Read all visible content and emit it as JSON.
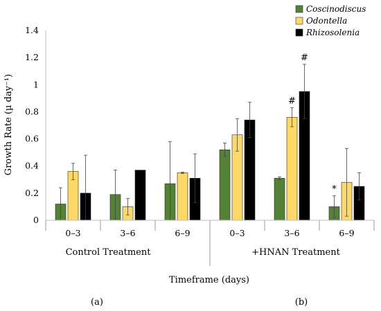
{
  "chart_data": {
    "type": "bar",
    "ylabel": "Growth Rate (µ day⁻¹)",
    "xlabel": "Timeframe (days)",
    "ylim": [
      0,
      1.4
    ],
    "yticks": [
      "0",
      "0.2",
      "0.4",
      "0.6",
      "0.8",
      "1",
      "1.2",
      "1.4"
    ],
    "grid": false,
    "legend_position": "top-right",
    "groups": [
      {
        "label": "Control Treatment",
        "categories": [
          "0–3",
          "3–6",
          "6–9"
        ]
      },
      {
        "label": "+HNAN Treatment",
        "categories": [
          "0–3",
          "3–6",
          "6–9"
        ]
      }
    ],
    "series": [
      {
        "name": "Coscinodiscus",
        "color": "#548235",
        "values": [
          0.12,
          0.19,
          0.27,
          0.52,
          0.31,
          0.1
        ],
        "errors": [
          0.12,
          0.18,
          0.31,
          0.05,
          0.01,
          0.08
        ]
      },
      {
        "name": "Odontella",
        "color": "#FFD966",
        "values": [
          0.36,
          0.1,
          0.35,
          0.63,
          0.76,
          0.28
        ],
        "errors": [
          0.06,
          0.06,
          0.005,
          0.12,
          0.07,
          0.25
        ]
      },
      {
        "name": "Rhizosolenia",
        "color": "#000000",
        "values": [
          0.2,
          0.37,
          0.31,
          0.74,
          0.95,
          0.25
        ],
        "errors": [
          0.28,
          0.0,
          0.18,
          0.13,
          0.2,
          0.1
        ]
      }
    ],
    "annotations": [
      {
        "text": "*",
        "category_index": 5,
        "series_index": 0
      },
      {
        "text": "#",
        "category_index": 4,
        "series_index": 1
      },
      {
        "text": "#",
        "category_index": 4,
        "series_index": 2
      }
    ],
    "panel_labels": [
      "(a)",
      "(b)"
    ]
  }
}
